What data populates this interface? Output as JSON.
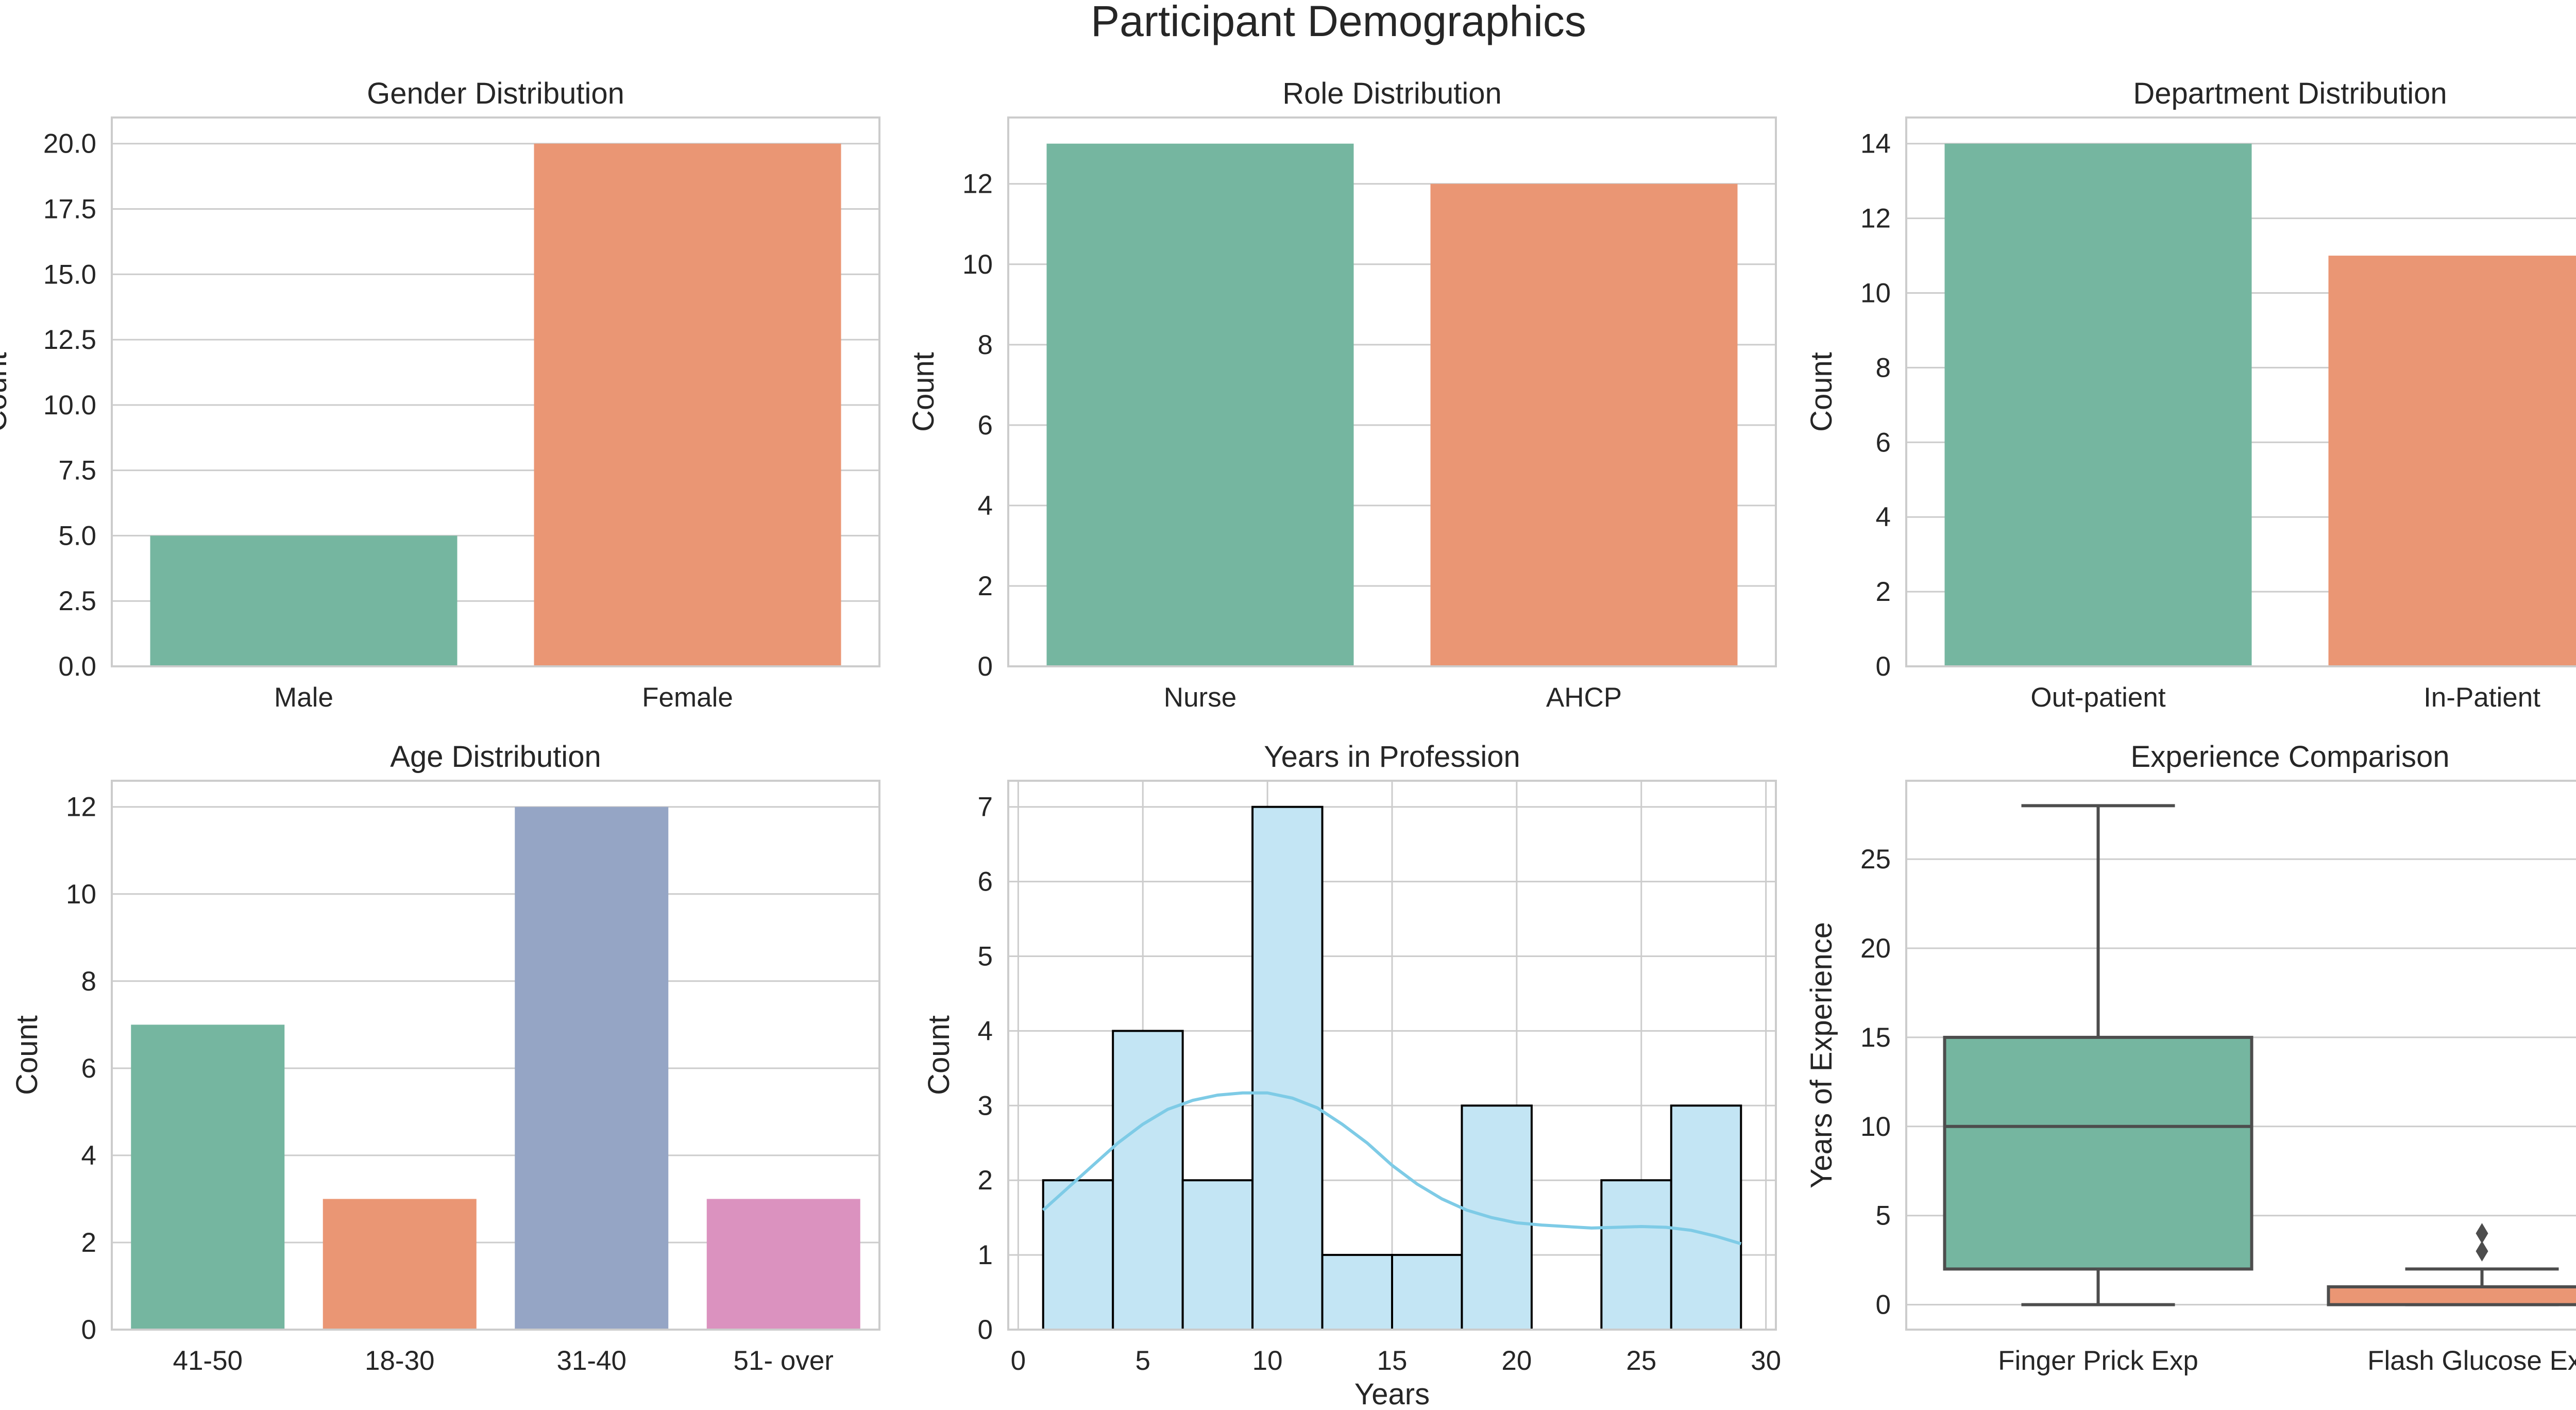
{
  "figure": {
    "title": "Participant Demographics"
  },
  "colors": {
    "green": "#75b6a0",
    "orange": "#ea9674",
    "blue": "#95a5c5",
    "pink": "#db92bf",
    "hist_fill": "#c3e5f4",
    "kde": "#7ecbe6",
    "grid": "#cccccc",
    "frame": "#cccccc",
    "box_line": "#4d4d4d"
  },
  "chart_data": [
    {
      "type": "bar",
      "title": "Gender Distribution",
      "xlabel": "",
      "ylabel": "Count",
      "categories": [
        "Male",
        "Female"
      ],
      "values": [
        5,
        20
      ],
      "ylim": [
        0,
        21
      ],
      "yticks": [
        0,
        2.5,
        5,
        7.5,
        10,
        12.5,
        15,
        17.5,
        20
      ],
      "ytick_labels": [
        "0.0",
        "2.5",
        "5.0",
        "7.5",
        "10.0",
        "12.5",
        "15.0",
        "17.5",
        "20.0"
      ],
      "colors": [
        "#75b6a0",
        "#ea9674"
      ]
    },
    {
      "type": "bar",
      "title": "Role Distribution",
      "xlabel": "",
      "ylabel": "Count",
      "categories": [
        "Nurse",
        "AHCP"
      ],
      "values": [
        13,
        12
      ],
      "ylim": [
        0,
        13.65
      ],
      "yticks": [
        0,
        2,
        4,
        6,
        8,
        10,
        12
      ],
      "ytick_labels": [
        "0",
        "2",
        "4",
        "6",
        "8",
        "10",
        "12"
      ],
      "colors": [
        "#75b6a0",
        "#ea9674"
      ]
    },
    {
      "type": "bar",
      "title": "Department Distribution",
      "xlabel": "",
      "ylabel": "Count",
      "categories": [
        "Out-patient",
        "In-Patient"
      ],
      "values": [
        14,
        11
      ],
      "ylim": [
        0,
        14.7
      ],
      "yticks": [
        0,
        2,
        4,
        6,
        8,
        10,
        12,
        14
      ],
      "ytick_labels": [
        "0",
        "2",
        "4",
        "6",
        "8",
        "10",
        "12",
        "14"
      ],
      "colors": [
        "#75b6a0",
        "#ea9674"
      ]
    },
    {
      "type": "bar",
      "title": "Age Distribution",
      "xlabel": "",
      "ylabel": "Count",
      "categories": [
        "41-50",
        "18-30",
        "31-40",
        "51- over"
      ],
      "values": [
        7,
        3,
        12,
        3
      ],
      "ylim": [
        0,
        12.6
      ],
      "yticks": [
        0,
        2,
        4,
        6,
        8,
        10,
        12
      ],
      "ytick_labels": [
        "0",
        "2",
        "4",
        "6",
        "8",
        "10",
        "12"
      ],
      "colors": [
        "#75b6a0",
        "#ea9674",
        "#95a5c5",
        "#db92bf"
      ]
    },
    {
      "type": "histogram",
      "title": "Years in Profession",
      "xlabel": "Years",
      "ylabel": "Count",
      "bin_edges": [
        1,
        3.8,
        6.6,
        9.4,
        12.2,
        15,
        17.8,
        20.6,
        23.4,
        26.2,
        29
      ],
      "counts": [
        2,
        4,
        2,
        7,
        1,
        1,
        3,
        0,
        2,
        3
      ],
      "xlim": [
        -0.4,
        30.4
      ],
      "ylim": [
        0,
        7.35
      ],
      "xticks": [
        0,
        5,
        10,
        15,
        20,
        25,
        30
      ],
      "xtick_labels": [
        "0",
        "5",
        "10",
        "15",
        "20",
        "25",
        "30"
      ],
      "yticks": [
        0,
        1,
        2,
        3,
        4,
        5,
        6,
        7
      ],
      "ytick_labels": [
        "0",
        "1",
        "2",
        "3",
        "4",
        "5",
        "6",
        "7"
      ],
      "kde_x": [
        1,
        2,
        3,
        4,
        5,
        6,
        7,
        8,
        9,
        10,
        11,
        12,
        13,
        14,
        15,
        16,
        17,
        18,
        19,
        20,
        21,
        22,
        23,
        24,
        25,
        26,
        27,
        28,
        29
      ],
      "kde_y": [
        1.6,
        1.9,
        2.2,
        2.5,
        2.75,
        2.95,
        3.07,
        3.14,
        3.17,
        3.17,
        3.1,
        2.97,
        2.75,
        2.5,
        2.2,
        1.95,
        1.75,
        1.6,
        1.5,
        1.43,
        1.4,
        1.38,
        1.36,
        1.37,
        1.38,
        1.37,
        1.33,
        1.25,
        1.15
      ]
    },
    {
      "type": "box",
      "title": "Experience Comparison",
      "xlabel": "",
      "ylabel": "Years of Experience",
      "categories": [
        "Finger Prick Exp",
        "Flash Glucose Exp"
      ],
      "boxes": [
        {
          "min": 0,
          "q1": 2,
          "median": 10,
          "q3": 15,
          "max": 28,
          "outliers": []
        },
        {
          "min": 0,
          "q1": 0,
          "median": 1,
          "q3": 1,
          "max": 2,
          "outliers": [
            3,
            4
          ]
        }
      ],
      "ylim": [
        -1.4,
        29.4
      ],
      "yticks": [
        0,
        5,
        10,
        15,
        20,
        25
      ],
      "ytick_labels": [
        "0",
        "5",
        "10",
        "15",
        "20",
        "25"
      ],
      "colors": [
        "#75b6a0",
        "#ea9674"
      ]
    }
  ]
}
